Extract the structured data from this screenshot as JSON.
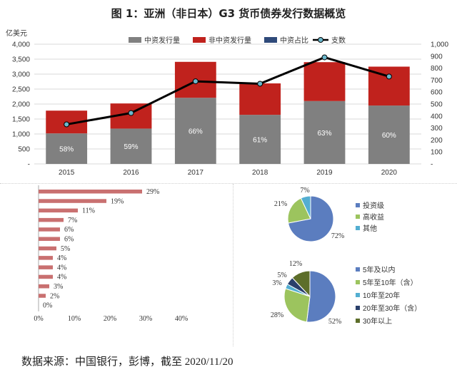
{
  "title": "图 1：亚洲（非日本）G3 货币债券发行数据概览",
  "source_note": "数据来源：中国银行，彭博，截至 2020/11/20",
  "chart_data": [
    {
      "type": "bar",
      "stacked": true,
      "categories": [
        "2015",
        "2016",
        "2017",
        "2018",
        "2019",
        "2020"
      ],
      "series": [
        {
          "name": "中资发行量",
          "color": "#808080",
          "values": [
            1020,
            1180,
            2210,
            1640,
            2100,
            1950
          ]
        },
        {
          "name": "非中资发行量",
          "color": "#c0221d",
          "values": [
            760,
            840,
            1200,
            1050,
            1300,
            1300
          ]
        },
        {
          "name": "中资占比",
          "color": "#2f4a7a",
          "values": [
            "58%",
            "59%",
            "66%",
            "61%",
            "63%",
            "60%"
          ]
        },
        {
          "name": "支数",
          "color": "#000000",
          "marker_color": "#6bb8cc",
          "axis": "right",
          "values": [
            330,
            425,
            690,
            670,
            890,
            730
          ]
        }
      ],
      "yunit": "亿美元",
      "ylim": [
        0,
        4000
      ],
      "yticks": [
        "-",
        "500",
        "1,000",
        "1,500",
        "2,000",
        "2,500",
        "3,000",
        "3,500",
        "4,000"
      ],
      "y2lim": [
        0,
        1000
      ],
      "y2ticks": [
        "-",
        "100",
        "200",
        "300",
        "400",
        "500",
        "600",
        "700",
        "800",
        "900",
        "1,000"
      ],
      "legend": "top"
    },
    {
      "type": "bar",
      "orientation": "horizontal",
      "categories": [
        "",
        "",
        "",
        "",
        "",
        "",
        "",
        "",
        "",
        "",
        "",
        "",
        ""
      ],
      "values": [
        29,
        19,
        11,
        7,
        6,
        6,
        5,
        4,
        4,
        4,
        3,
        2,
        0
      ],
      "value_labels": [
        "29%",
        "19%",
        "11%",
        "7%",
        "6%",
        "6%",
        "5%",
        "4%",
        "4%",
        "4%",
        "3%",
        "2%",
        "0%"
      ],
      "xlim": [
        0,
        40
      ],
      "xticks": [
        "0%",
        "10%",
        "20%",
        "30%",
        "40%"
      ],
      "color": "#c97070"
    },
    {
      "type": "pie",
      "labels": [
        "投资级",
        "高收益",
        "其他"
      ],
      "values": [
        72,
        21,
        7
      ],
      "value_labels": [
        "72%",
        "21%",
        "7%"
      ],
      "colors": [
        "#5b7dbf",
        "#9cc45e",
        "#53aed1"
      ],
      "legend": "right"
    },
    {
      "type": "pie",
      "labels": [
        "5年及以内",
        "5年至10年（含）",
        "10年至20年",
        "20年至30年（含）",
        "30年以上"
      ],
      "values": [
        52,
        28,
        3,
        5,
        12
      ],
      "value_labels": [
        "52%",
        "28%",
        "3%",
        "5%",
        "12%"
      ],
      "colors": [
        "#5b7dbf",
        "#9cc45e",
        "#53aed1",
        "#2a3f6b",
        "#5d6e2a"
      ],
      "legend": "right"
    }
  ]
}
